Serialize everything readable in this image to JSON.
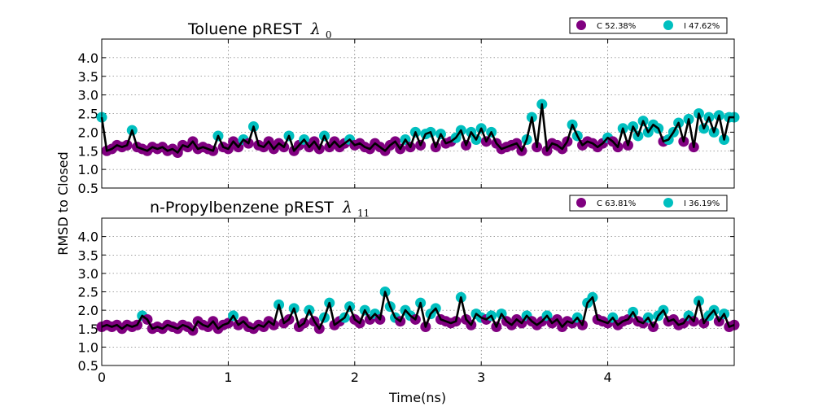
{
  "figure": {
    "ylabel": "RMSD to Closed",
    "xlabel": "Time(ns)"
  },
  "panels": [
    {
      "title": "Toluene pREST",
      "title_symbol": "λ",
      "title_subscript": "0",
      "legend": [
        {
          "label": "C 52.38%",
          "color": "#800080"
        },
        {
          "label": "I 47.62%",
          "color": "#00BFBF"
        }
      ]
    },
    {
      "title": "n-Propylbenzene pREST",
      "title_symbol": "λ",
      "title_subscript": "11",
      "legend": [
        {
          "label": "C 63.81%",
          "color": "#800080"
        },
        {
          "label": "I 36.19%",
          "color": "#00BFBF"
        }
      ]
    }
  ],
  "chart_data": [
    {
      "type": "line",
      "title": "Toluene pREST λ0",
      "xlabel": "Time(ns)",
      "ylabel": "RMSD to Closed",
      "xlim": [
        0,
        5
      ],
      "ylim": [
        0.5,
        4.5
      ],
      "xticks": [
        0,
        1,
        2,
        3,
        4
      ],
      "yticks": [
        0.5,
        1.0,
        1.5,
        2.0,
        2.5,
        3.0,
        3.5,
        4.0
      ],
      "grid": true,
      "legend_position": "top-right",
      "state_colors": {
        "C": "#800080",
        "I": "#00BFBF"
      },
      "threshold": 1.75,
      "x": [
        0.0,
        0.04,
        0.08,
        0.12,
        0.16,
        0.2,
        0.24,
        0.28,
        0.32,
        0.36,
        0.4,
        0.44,
        0.48,
        0.52,
        0.56,
        0.6,
        0.64,
        0.68,
        0.72,
        0.76,
        0.8,
        0.84,
        0.88,
        0.92,
        0.96,
        1.0,
        1.04,
        1.08,
        1.12,
        1.16,
        1.2,
        1.24,
        1.28,
        1.32,
        1.36,
        1.4,
        1.44,
        1.48,
        1.52,
        1.56,
        1.6,
        1.64,
        1.68,
        1.72,
        1.76,
        1.8,
        1.84,
        1.88,
        1.92,
        1.96,
        2.0,
        2.04,
        2.08,
        2.12,
        2.16,
        2.2,
        2.24,
        2.28,
        2.32,
        2.36,
        2.4,
        2.44,
        2.48,
        2.52,
        2.56,
        2.6,
        2.64,
        2.68,
        2.72,
        2.76,
        2.8,
        2.84,
        2.88,
        2.92,
        2.96,
        3.0,
        3.04,
        3.08,
        3.12,
        3.16,
        3.2,
        3.24,
        3.28,
        3.32,
        3.36,
        3.4,
        3.44,
        3.48,
        3.52,
        3.56,
        3.6,
        3.64,
        3.68,
        3.72,
        3.76,
        3.8,
        3.84,
        3.88,
        3.92,
        3.96,
        4.0,
        4.04,
        4.08,
        4.12,
        4.16,
        4.2,
        4.24,
        4.28,
        4.32,
        4.36,
        4.4,
        4.44,
        4.48,
        4.52,
        4.56,
        4.6,
        4.64,
        4.68,
        4.72,
        4.76,
        4.8,
        4.84,
        4.88,
        4.92,
        4.96,
        5.0
      ],
      "values": [
        2.4,
        1.5,
        1.55,
        1.65,
        1.6,
        1.65,
        2.05,
        1.6,
        1.55,
        1.5,
        1.6,
        1.55,
        1.6,
        1.5,
        1.55,
        1.45,
        1.65,
        1.6,
        1.75,
        1.55,
        1.6,
        1.55,
        1.5,
        1.9,
        1.6,
        1.55,
        1.75,
        1.6,
        1.8,
        1.7,
        2.15,
        1.65,
        1.6,
        1.75,
        1.55,
        1.7,
        1.6,
        1.9,
        1.5,
        1.65,
        1.8,
        1.6,
        1.75,
        1.55,
        1.9,
        1.6,
        1.75,
        1.6,
        1.7,
        1.8,
        1.65,
        1.7,
        1.6,
        1.55,
        1.7,
        1.6,
        1.5,
        1.65,
        1.75,
        1.55,
        1.8,
        1.6,
        2.0,
        1.65,
        1.95,
        2.0,
        1.6,
        1.95,
        1.7,
        1.75,
        1.85,
        2.05,
        1.65,
        2.0,
        1.8,
        2.1,
        1.75,
        2.0,
        1.7,
        1.55,
        1.6,
        1.65,
        1.7,
        1.5,
        1.8,
        2.4,
        1.6,
        2.75,
        1.5,
        1.7,
        1.65,
        1.55,
        1.75,
        2.2,
        1.9,
        1.65,
        1.75,
        1.7,
        1.6,
        1.7,
        1.85,
        1.75,
        1.6,
        2.1,
        1.65,
        2.15,
        1.9,
        2.3,
        2.0,
        2.2,
        2.1,
        1.75,
        1.8,
        2.0,
        2.25,
        1.75,
        2.35,
        1.6,
        2.5,
        2.1,
        2.4,
        2.0,
        2.45,
        1.8,
        2.4,
        2.4
      ]
    },
    {
      "type": "line",
      "title": "n-Propylbenzene pREST λ11",
      "xlabel": "Time(ns)",
      "ylabel": "RMSD to Closed",
      "xlim": [
        0,
        5
      ],
      "ylim": [
        0.5,
        4.5
      ],
      "xticks": [
        0,
        1,
        2,
        3,
        4
      ],
      "yticks": [
        0.5,
        1.0,
        1.5,
        2.0,
        2.5,
        3.0,
        3.5,
        4.0
      ],
      "grid": true,
      "legend_position": "top-right",
      "state_colors": {
        "C": "#800080",
        "I": "#00BFBF"
      },
      "threshold": 1.75,
      "x": [
        0.0,
        0.04,
        0.08,
        0.12,
        0.16,
        0.2,
        0.24,
        0.28,
        0.32,
        0.36,
        0.4,
        0.44,
        0.48,
        0.52,
        0.56,
        0.6,
        0.64,
        0.68,
        0.72,
        0.76,
        0.8,
        0.84,
        0.88,
        0.92,
        0.96,
        1.0,
        1.04,
        1.08,
        1.12,
        1.16,
        1.2,
        1.24,
        1.28,
        1.32,
        1.36,
        1.4,
        1.44,
        1.48,
        1.52,
        1.56,
        1.6,
        1.64,
        1.68,
        1.72,
        1.76,
        1.8,
        1.84,
        1.88,
        1.92,
        1.96,
        2.0,
        2.04,
        2.08,
        2.12,
        2.16,
        2.2,
        2.24,
        2.28,
        2.32,
        2.36,
        2.4,
        2.44,
        2.48,
        2.52,
        2.56,
        2.6,
        2.64,
        2.68,
        2.72,
        2.76,
        2.8,
        2.84,
        2.88,
        2.92,
        2.96,
        3.0,
        3.04,
        3.08,
        3.12,
        3.16,
        3.2,
        3.24,
        3.28,
        3.32,
        3.36,
        3.4,
        3.44,
        3.48,
        3.52,
        3.56,
        3.6,
        3.64,
        3.68,
        3.72,
        3.76,
        3.8,
        3.84,
        3.88,
        3.92,
        3.96,
        4.0,
        4.04,
        4.08,
        4.12,
        4.16,
        4.2,
        4.24,
        4.28,
        4.32,
        4.36,
        4.4,
        4.44,
        4.48,
        4.52,
        4.56,
        4.6,
        4.64,
        4.68,
        4.72,
        4.76,
        4.8,
        4.84,
        4.88,
        4.92,
        4.96,
        5.0
      ],
      "values": [
        1.55,
        1.6,
        1.55,
        1.6,
        1.5,
        1.6,
        1.55,
        1.6,
        1.85,
        1.75,
        1.5,
        1.55,
        1.5,
        1.6,
        1.55,
        1.5,
        1.6,
        1.55,
        1.45,
        1.7,
        1.6,
        1.55,
        1.7,
        1.5,
        1.6,
        1.65,
        1.85,
        1.6,
        1.7,
        1.55,
        1.5,
        1.6,
        1.55,
        1.7,
        1.6,
        2.15,
        1.65,
        1.75,
        2.05,
        1.55,
        1.65,
        2.0,
        1.7,
        1.5,
        1.8,
        2.2,
        1.6,
        1.7,
        1.8,
        2.1,
        1.75,
        1.65,
        2.0,
        1.75,
        1.9,
        1.75,
        2.5,
        2.1,
        1.8,
        1.7,
        2.0,
        1.85,
        1.75,
        2.2,
        1.55,
        1.9,
        2.05,
        1.75,
        1.7,
        1.65,
        1.7,
        2.35,
        1.75,
        1.6,
        1.9,
        1.8,
        1.75,
        1.85,
        1.55,
        1.9,
        1.7,
        1.6,
        1.75,
        1.65,
        1.85,
        1.7,
        1.6,
        1.7,
        1.85,
        1.65,
        1.75,
        1.55,
        1.7,
        1.65,
        1.8,
        1.6,
        2.2,
        2.35,
        1.75,
        1.7,
        1.65,
        1.8,
        1.6,
        1.7,
        1.75,
        1.95,
        1.7,
        1.65,
        1.8,
        1.55,
        1.85,
        2.0,
        1.7,
        1.75,
        1.6,
        1.65,
        1.85,
        1.7,
        2.25,
        1.65,
        1.85,
        2.0,
        1.7,
        1.9,
        1.55,
        1.6
      ]
    }
  ]
}
